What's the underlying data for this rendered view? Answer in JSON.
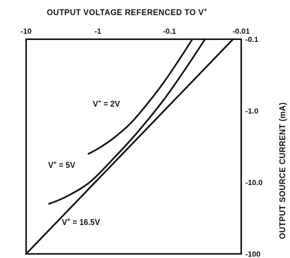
{
  "chart_data": {
    "type": "line",
    "title": "",
    "xlabel": "OUTPUT VOLTAGE REFERENCED TO V",
    "xlabel_sup": "+",
    "ylabel": "OUTPUT SOURCE CURRENT (mA)",
    "x_axis_position": "top",
    "y_axis_position": "right",
    "x_scale": "log",
    "y_scale": "log",
    "xlim": [
      -10,
      -0.01
    ],
    "ylim": [
      -100,
      -0.1
    ],
    "x_ticks": [
      "-10",
      "-1",
      "-0.1",
      "-0.01"
    ],
    "y_ticks": [
      "-0.1",
      "-1.0",
      "-10.0",
      "-100"
    ],
    "grid": false,
    "legend": "none",
    "series": [
      {
        "name": "V+ = 2V",
        "label_main": "V",
        "label_sup": "+",
        "label_rest": " = 2V",
        "x": [
          -1.35,
          -0.95,
          -0.6,
          -0.35,
          -0.2,
          -0.12,
          -0.075,
          -0.048
        ],
        "y": [
          -4.0,
          -3.3,
          -2.4,
          -1.5,
          -0.78,
          -0.4,
          -0.2,
          -0.1
        ]
      },
      {
        "name": "V+ = 5V",
        "label_main": "V",
        "label_sup": "+",
        "label_rest": " = 5V",
        "x": [
          -4.8,
          -2.8,
          -1.3,
          -0.6,
          -0.28,
          -0.12,
          -0.06,
          -0.032
        ],
        "y": [
          -20.0,
          -16.0,
          -10.0,
          -4.6,
          -2.0,
          -0.7,
          -0.26,
          -0.1
        ]
      },
      {
        "name": "V+ = 16.5V",
        "label_main": "V",
        "label_sup": "+",
        "label_rest": " = 16.5V",
        "x": [
          -10,
          -0.013
        ],
        "y": [
          -100,
          -0.1
        ]
      }
    ]
  }
}
